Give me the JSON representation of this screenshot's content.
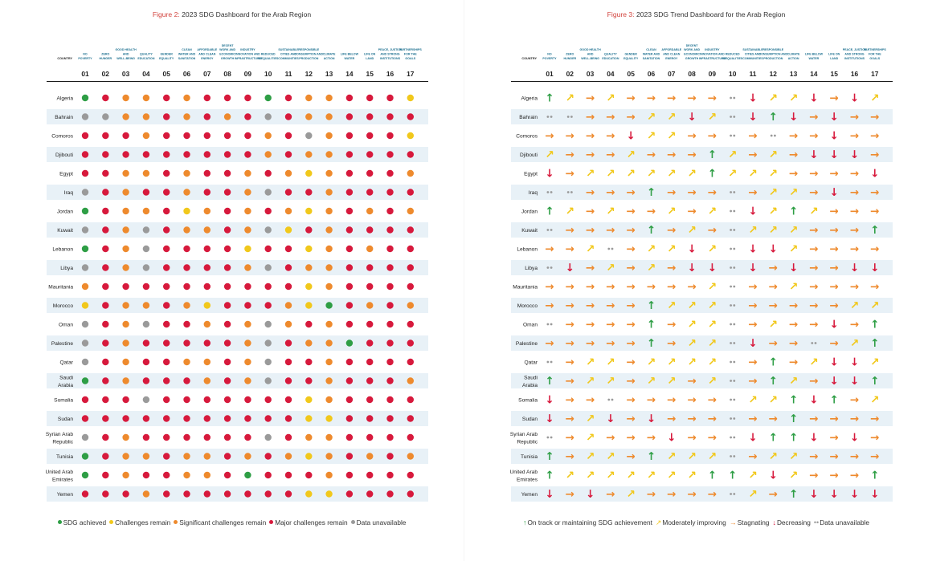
{
  "colors": {
    "green": "#2e9e45",
    "yellow": "#f1c81b",
    "orange": "#ee8a2d",
    "red": "#d7193c",
    "gray": "#9a9a9a",
    "header": "#1a6e8e",
    "stripe": "#e8f1f7"
  },
  "header": {
    "country": "COUNTRY",
    "goals": [
      {
        "num": "01",
        "label": [
          "NO",
          "POVERTY"
        ]
      },
      {
        "num": "02",
        "label": [
          "ZERO",
          "HUNGER"
        ]
      },
      {
        "num": "03",
        "label": [
          "GOOD HEALTH",
          "AND",
          "WELL-BEING"
        ]
      },
      {
        "num": "04",
        "label": [
          "QUALITY",
          "EDUCATION"
        ]
      },
      {
        "num": "05",
        "label": [
          "GENDER",
          "EQUALITY"
        ]
      },
      {
        "num": "06",
        "label": [
          "CLEAN",
          "WATER AND",
          "SANITATION"
        ]
      },
      {
        "num": "07",
        "label": [
          "AFFORDABLE",
          "AND CLEAN",
          "ENERGY"
        ]
      },
      {
        "num": "08",
        "label": [
          "DECENT",
          "WORK AND",
          "ECONOMIC",
          "GROWTH"
        ]
      },
      {
        "num": "09",
        "label": [
          "INDUSTRY",
          "INNOVATION AND",
          "INFRASTRUCTURE"
        ]
      },
      {
        "num": "10",
        "label": [
          "REDUCED",
          "INEQUALITIES"
        ]
      },
      {
        "num": "11",
        "label": [
          "SUSTAINABLE",
          "CITIES AND",
          "COMMUNITIES"
        ]
      },
      {
        "num": "12",
        "label": [
          "RESPONSIBLE",
          "CONSUMPTION AND",
          "PRODUCTION"
        ]
      },
      {
        "num": "13",
        "label": [
          "CLIMATE",
          "ACTION"
        ]
      },
      {
        "num": "14",
        "label": [
          "LIFE BELOW",
          "WATER"
        ]
      },
      {
        "num": "15",
        "label": [
          "LIFE ON",
          "LAND"
        ]
      },
      {
        "num": "16",
        "label": [
          "PEACE, JUSTICE",
          "AND STRONG",
          "INSTITUTIONS"
        ]
      },
      {
        "num": "17",
        "label": [
          "PARTNERSHIPS",
          "FOR THE",
          "GOALS"
        ]
      }
    ]
  },
  "countries": [
    [
      "Algeria"
    ],
    [
      "Bahrain"
    ],
    [
      "Comoros"
    ],
    [
      "Djibouti"
    ],
    [
      "Egypt"
    ],
    [
      "Iraq"
    ],
    [
      "Jordan"
    ],
    [
      "Kuwait"
    ],
    [
      "Lebanon"
    ],
    [
      "Libya"
    ],
    [
      "Mauritania"
    ],
    [
      "Morocco"
    ],
    [
      "Oman"
    ],
    [
      "Palestine"
    ],
    [
      "Qatar"
    ],
    [
      "Saudi",
      "Arabia"
    ],
    [
      "Somalia"
    ],
    [
      "Sudan"
    ],
    [
      "Syrian Arab",
      "Republic"
    ],
    [
      "Tunisia"
    ],
    [
      "United Arab",
      "Emirates"
    ],
    [
      "Yemen"
    ]
  ],
  "figure2": {
    "title_prefix": "Figure 2:",
    "title_text": " 2023 SDG Dashboard for the Arab Region",
    "chart_data": {
      "type": "heatmap",
      "status_codes": {
        "G": "SDG achieved",
        "Y": "Challenges remain",
        "O": "Significant challenges remain",
        "R": "Major challenges remain",
        "U": "Data unavailable"
      },
      "rows": [
        [
          "G",
          "R",
          "O",
          "O",
          "R",
          "O",
          "R",
          "R",
          "R",
          "G",
          "R",
          "O",
          "O",
          "R",
          "R",
          "R",
          "Y"
        ],
        [
          "U",
          "U",
          "O",
          "O",
          "R",
          "O",
          "R",
          "O",
          "R",
          "U",
          "R",
          "O",
          "O",
          "R",
          "R",
          "R",
          "R"
        ],
        [
          "R",
          "R",
          "R",
          "O",
          "R",
          "R",
          "R",
          "R",
          "R",
          "O",
          "R",
          "U",
          "O",
          "R",
          "R",
          "R",
          "Y"
        ],
        [
          "R",
          "R",
          "R",
          "R",
          "R",
          "R",
          "R",
          "R",
          "R",
          "O",
          "R",
          "O",
          "O",
          "R",
          "R",
          "R",
          "R"
        ],
        [
          "R",
          "R",
          "O",
          "O",
          "R",
          "O",
          "R",
          "R",
          "O",
          "R",
          "O",
          "Y",
          "O",
          "R",
          "R",
          "R",
          "O"
        ],
        [
          "U",
          "R",
          "O",
          "R",
          "R",
          "O",
          "R",
          "R",
          "O",
          "U",
          "R",
          "R",
          "O",
          "R",
          "R",
          "R",
          "R"
        ],
        [
          "G",
          "R",
          "O",
          "O",
          "R",
          "Y",
          "O",
          "R",
          "O",
          "R",
          "O",
          "Y",
          "O",
          "R",
          "O",
          "R",
          "O"
        ],
        [
          "U",
          "R",
          "O",
          "U",
          "R",
          "O",
          "O",
          "R",
          "O",
          "U",
          "Y",
          "R",
          "O",
          "R",
          "R",
          "R",
          "R"
        ],
        [
          "G",
          "R",
          "O",
          "U",
          "R",
          "R",
          "R",
          "R",
          "Y",
          "R",
          "R",
          "Y",
          "O",
          "R",
          "O",
          "R",
          "R"
        ],
        [
          "U",
          "R",
          "O",
          "U",
          "R",
          "R",
          "R",
          "R",
          "O",
          "U",
          "R",
          "O",
          "O",
          "R",
          "R",
          "R",
          "R"
        ],
        [
          "O",
          "R",
          "R",
          "R",
          "R",
          "R",
          "R",
          "R",
          "R",
          "R",
          "R",
          "Y",
          "O",
          "R",
          "R",
          "R",
          "R"
        ],
        [
          "Y",
          "R",
          "O",
          "O",
          "R",
          "O",
          "Y",
          "R",
          "R",
          "R",
          "O",
          "Y",
          "G",
          "R",
          "O",
          "R",
          "O"
        ],
        [
          "U",
          "R",
          "O",
          "U",
          "R",
          "R",
          "O",
          "R",
          "O",
          "U",
          "O",
          "R",
          "O",
          "R",
          "R",
          "R",
          "R"
        ],
        [
          "U",
          "R",
          "O",
          "R",
          "R",
          "R",
          "R",
          "R",
          "O",
          "U",
          "R",
          "O",
          "O",
          "G",
          "R",
          "R",
          "R"
        ],
        [
          "U",
          "R",
          "O",
          "R",
          "R",
          "O",
          "O",
          "R",
          "O",
          "U",
          "R",
          "R",
          "O",
          "R",
          "R",
          "R",
          "R"
        ],
        [
          "G",
          "R",
          "O",
          "R",
          "R",
          "R",
          "O",
          "R",
          "O",
          "U",
          "R",
          "R",
          "O",
          "R",
          "R",
          "R",
          "O"
        ],
        [
          "R",
          "R",
          "R",
          "U",
          "R",
          "R",
          "R",
          "R",
          "R",
          "R",
          "R",
          "Y",
          "O",
          "R",
          "R",
          "R",
          "R"
        ],
        [
          "R",
          "R",
          "R",
          "R",
          "R",
          "R",
          "R",
          "R",
          "R",
          "R",
          "R",
          "Y",
          "Y",
          "R",
          "R",
          "R",
          "R"
        ],
        [
          "U",
          "R",
          "O",
          "R",
          "R",
          "R",
          "R",
          "R",
          "R",
          "U",
          "R",
          "O",
          "O",
          "R",
          "R",
          "R",
          "R"
        ],
        [
          "G",
          "R",
          "O",
          "O",
          "R",
          "O",
          "O",
          "R",
          "O",
          "R",
          "O",
          "Y",
          "O",
          "R",
          "O",
          "R",
          "O"
        ],
        [
          "G",
          "R",
          "O",
          "R",
          "R",
          "O",
          "O",
          "R",
          "G",
          "R",
          "R",
          "R",
          "O",
          "R",
          "R",
          "R",
          "R"
        ],
        [
          "R",
          "R",
          "R",
          "O",
          "R",
          "R",
          "R",
          "R",
          "R",
          "R",
          "R",
          "Y",
          "Y",
          "R",
          "R",
          "R",
          "R"
        ]
      ]
    },
    "legend": [
      {
        "code": "G",
        "label": "SDG achieved"
      },
      {
        "code": "Y",
        "label": "Challenges remain"
      },
      {
        "code": "O",
        "label": "Significant challenges remain"
      },
      {
        "code": "R",
        "label": "Major challenges remain"
      },
      {
        "code": "U",
        "label": "Data unavailable"
      }
    ]
  },
  "figure3": {
    "title_prefix": "Figure 3:",
    "title_text": " 2023 SDG Trend Dashboard for the Arab Region",
    "chart_data": {
      "type": "heatmap",
      "trend_codes": {
        "U": "On track or maintaining SDG achievement",
        "M": "Moderately improving",
        "S": "Stagnating",
        "D": "Decreasing",
        "N": "Data unavailable"
      },
      "rows": [
        [
          "U",
          "M",
          "S",
          "M",
          "S",
          "S",
          "S",
          "S",
          "S",
          "N",
          "D",
          "M",
          "M",
          "D",
          "S",
          "D",
          "M"
        ],
        [
          "N",
          "N",
          "S",
          "S",
          "S",
          "M",
          "M",
          "D",
          "M",
          "N",
          "D",
          "U",
          "D",
          "S",
          "D",
          "S",
          "S"
        ],
        [
          "S",
          "S",
          "S",
          "S",
          "D",
          "M",
          "M",
          "S",
          "S",
          "N",
          "S",
          "N",
          "S",
          "S",
          "D",
          "S",
          "S"
        ],
        [
          "M",
          "S",
          "S",
          "S",
          "M",
          "S",
          "S",
          "S",
          "U",
          "M",
          "S",
          "M",
          "S",
          "D",
          "D",
          "D",
          "S"
        ],
        [
          "D",
          "S",
          "M",
          "M",
          "M",
          "M",
          "M",
          "M",
          "U",
          "M",
          "M",
          "M",
          "S",
          "S",
          "S",
          "S",
          "D"
        ],
        [
          "N",
          "N",
          "S",
          "S",
          "S",
          "U",
          "S",
          "S",
          "S",
          "N",
          "S",
          "M",
          "M",
          "S",
          "D",
          "S",
          "S"
        ],
        [
          "U",
          "M",
          "S",
          "M",
          "S",
          "S",
          "M",
          "S",
          "M",
          "N",
          "D",
          "M",
          "U",
          "M",
          "S",
          "S",
          "S"
        ],
        [
          "N",
          "S",
          "S",
          "S",
          "S",
          "U",
          "S",
          "M",
          "S",
          "N",
          "M",
          "M",
          "M",
          "S",
          "S",
          "S",
          "U"
        ],
        [
          "S",
          "S",
          "M",
          "N",
          "S",
          "M",
          "M",
          "D",
          "M",
          "N",
          "D",
          "D",
          "M",
          "S",
          "S",
          "S",
          "S"
        ],
        [
          "N",
          "D",
          "S",
          "M",
          "S",
          "M",
          "S",
          "D",
          "D",
          "N",
          "D",
          "S",
          "D",
          "S",
          "S",
          "D",
          "D"
        ],
        [
          "S",
          "S",
          "S",
          "S",
          "S",
          "S",
          "S",
          "S",
          "M",
          "N",
          "S",
          "S",
          "M",
          "S",
          "S",
          "S",
          "S"
        ],
        [
          "S",
          "S",
          "S",
          "S",
          "S",
          "U",
          "M",
          "M",
          "M",
          "N",
          "S",
          "S",
          "S",
          "S",
          "S",
          "M",
          "M"
        ],
        [
          "N",
          "S",
          "S",
          "S",
          "S",
          "U",
          "S",
          "M",
          "M",
          "N",
          "S",
          "M",
          "S",
          "S",
          "D",
          "S",
          "U"
        ],
        [
          "S",
          "S",
          "S",
          "S",
          "S",
          "U",
          "S",
          "M",
          "M",
          "N",
          "D",
          "S",
          "S",
          "N",
          "S",
          "M",
          "U"
        ],
        [
          "N",
          "S",
          "M",
          "M",
          "S",
          "M",
          "M",
          "M",
          "M",
          "N",
          "S",
          "U",
          "S",
          "M",
          "D",
          "D",
          "M"
        ],
        [
          "U",
          "S",
          "M",
          "M",
          "S",
          "M",
          "M",
          "S",
          "M",
          "N",
          "S",
          "U",
          "M",
          "S",
          "D",
          "D",
          "U"
        ],
        [
          "D",
          "S",
          "S",
          "N",
          "S",
          "S",
          "S",
          "S",
          "S",
          "N",
          "M",
          "M",
          "U",
          "D",
          "U",
          "S",
          "M"
        ],
        [
          "D",
          "S",
          "M",
          "D",
          "S",
          "D",
          "S",
          "S",
          "S",
          "N",
          "S",
          "S",
          "U",
          "S",
          "S",
          "S",
          "S"
        ],
        [
          "N",
          "S",
          "M",
          "S",
          "S",
          "S",
          "D",
          "S",
          "S",
          "N",
          "D",
          "U",
          "U",
          "D",
          "S",
          "D",
          "S"
        ],
        [
          "U",
          "S",
          "M",
          "M",
          "S",
          "U",
          "M",
          "M",
          "M",
          "N",
          "S",
          "M",
          "M",
          "S",
          "S",
          "S",
          "S"
        ],
        [
          "U",
          "M",
          "M",
          "M",
          "M",
          "M",
          "M",
          "M",
          "U",
          "U",
          "M",
          "D",
          "M",
          "S",
          "S",
          "S",
          "U"
        ],
        [
          "D",
          "S",
          "D",
          "S",
          "M",
          "S",
          "S",
          "S",
          "S",
          "N",
          "M",
          "S",
          "U",
          "D",
          "D",
          "D",
          "D"
        ]
      ]
    },
    "legend": [
      {
        "code": "U",
        "label": "On track or maintaining SDG achievement"
      },
      {
        "code": "M",
        "label": "Moderately improving"
      },
      {
        "code": "S",
        "label": "Stagnating"
      },
      {
        "code": "D",
        "label": "Decreasing"
      },
      {
        "code": "N",
        "label": "Data unavailable"
      }
    ]
  }
}
